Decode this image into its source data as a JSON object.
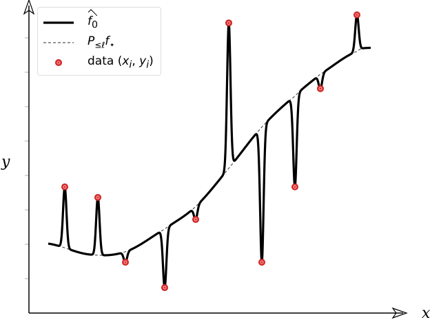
{
  "chart_data": {
    "type": "line",
    "title": "",
    "xlabel": "x",
    "ylabel": "y",
    "xlim": [
      0,
      11.5
    ],
    "ylim": [
      0,
      10.1
    ],
    "grid": false,
    "legend_position": "top-left",
    "legend": [
      {
        "label": "f0 (hat)",
        "display_main": "f",
        "display_sub": "0",
        "style": "solid-thick",
        "color": "#000000"
      },
      {
        "label": "P≤ℓ f⋆",
        "display_main": "P",
        "display_sub": "≤ℓ",
        "display_rest": "f",
        "display_rest_sub": "⋆",
        "style": "dashed",
        "color": "#555555"
      },
      {
        "label": "data (xi, yi)",
        "display_prefix": "data (",
        "display_x": "x",
        "display_y": "y",
        "display_i": "i",
        "style": "marker",
        "color": "#e03030"
      }
    ],
    "series": [
      {
        "name": "P≤ℓ f⋆",
        "x": [
          0.56,
          1.76,
          2.8,
          3.94,
          4.84,
          5.8,
          6.76,
          7.72,
          8.46,
          9.52,
          9.92
        ],
        "y": [
          2.24,
          1.89,
          1.98,
          2.71,
          3.44,
          4.67,
          6.0,
          7.0,
          7.71,
          8.44,
          8.56
        ]
      },
      {
        "name": "data (xi, yi)",
        "x": [
          1.04,
          2.0,
          2.8,
          3.94,
          4.84,
          5.8,
          6.76,
          7.72,
          8.46,
          9.52
        ],
        "y": [
          4.07,
          3.73,
          1.64,
          0.82,
          3.02,
          9.36,
          1.64,
          4.07,
          7.24,
          9.62
        ]
      }
    ],
    "colors": {
      "curve": "#000000",
      "dashed": "#555555",
      "marker": "#e03030"
    }
  }
}
